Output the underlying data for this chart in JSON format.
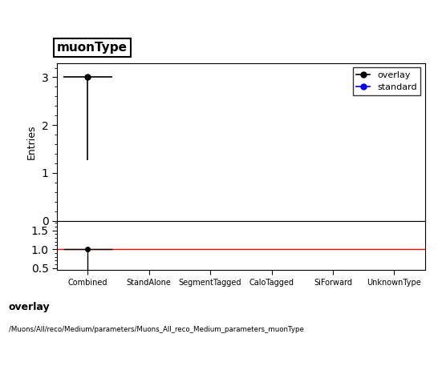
{
  "title": "muonType",
  "ylabel": "Entries",
  "categories": [
    "Combined",
    "StandAlone",
    "SegmentTagged",
    "CaloTagged",
    "SiForward",
    "UnknownType"
  ],
  "overlay_values": [
    3,
    0,
    0,
    0,
    0,
    0
  ],
  "overlay_yerr_low": [
    1.73,
    0,
    0,
    0,
    0,
    0
  ],
  "overlay_yerr_high": [
    0,
    0,
    0,
    0,
    0,
    0
  ],
  "overlay_xerr": [
    0.4,
    0,
    0,
    0,
    0,
    0
  ],
  "standard_values": [
    0,
    0,
    0,
    0,
    0,
    0
  ],
  "ratio_overlay": [
    1.0,
    0,
    0,
    0,
    0,
    0
  ],
  "ratio_overlay_err_low": [
    0.577,
    0,
    0,
    0,
    0,
    0
  ],
  "ratio_overlay_err_high": [
    0,
    0,
    0,
    0,
    0,
    0
  ],
  "ratio_line": 1.0,
  "main_ylim": [
    0,
    3.3
  ],
  "ratio_ylim": [
    0.45,
    1.75
  ],
  "main_yticks": [
    0,
    1,
    2,
    3
  ],
  "ratio_yticks": [
    0.5,
    1.0,
    1.5
  ],
  "overlay_color": "#000000",
  "standard_color": "#0000ff",
  "ratio_line_color": "#ff0000",
  "footer_line1": "overlay",
  "footer_line2": "/Muons/All/reco/Medium/parameters/Muons_All_reco_Medium_parameters_muonType",
  "legend_overlay": "overlay",
  "legend_standard": "standard"
}
